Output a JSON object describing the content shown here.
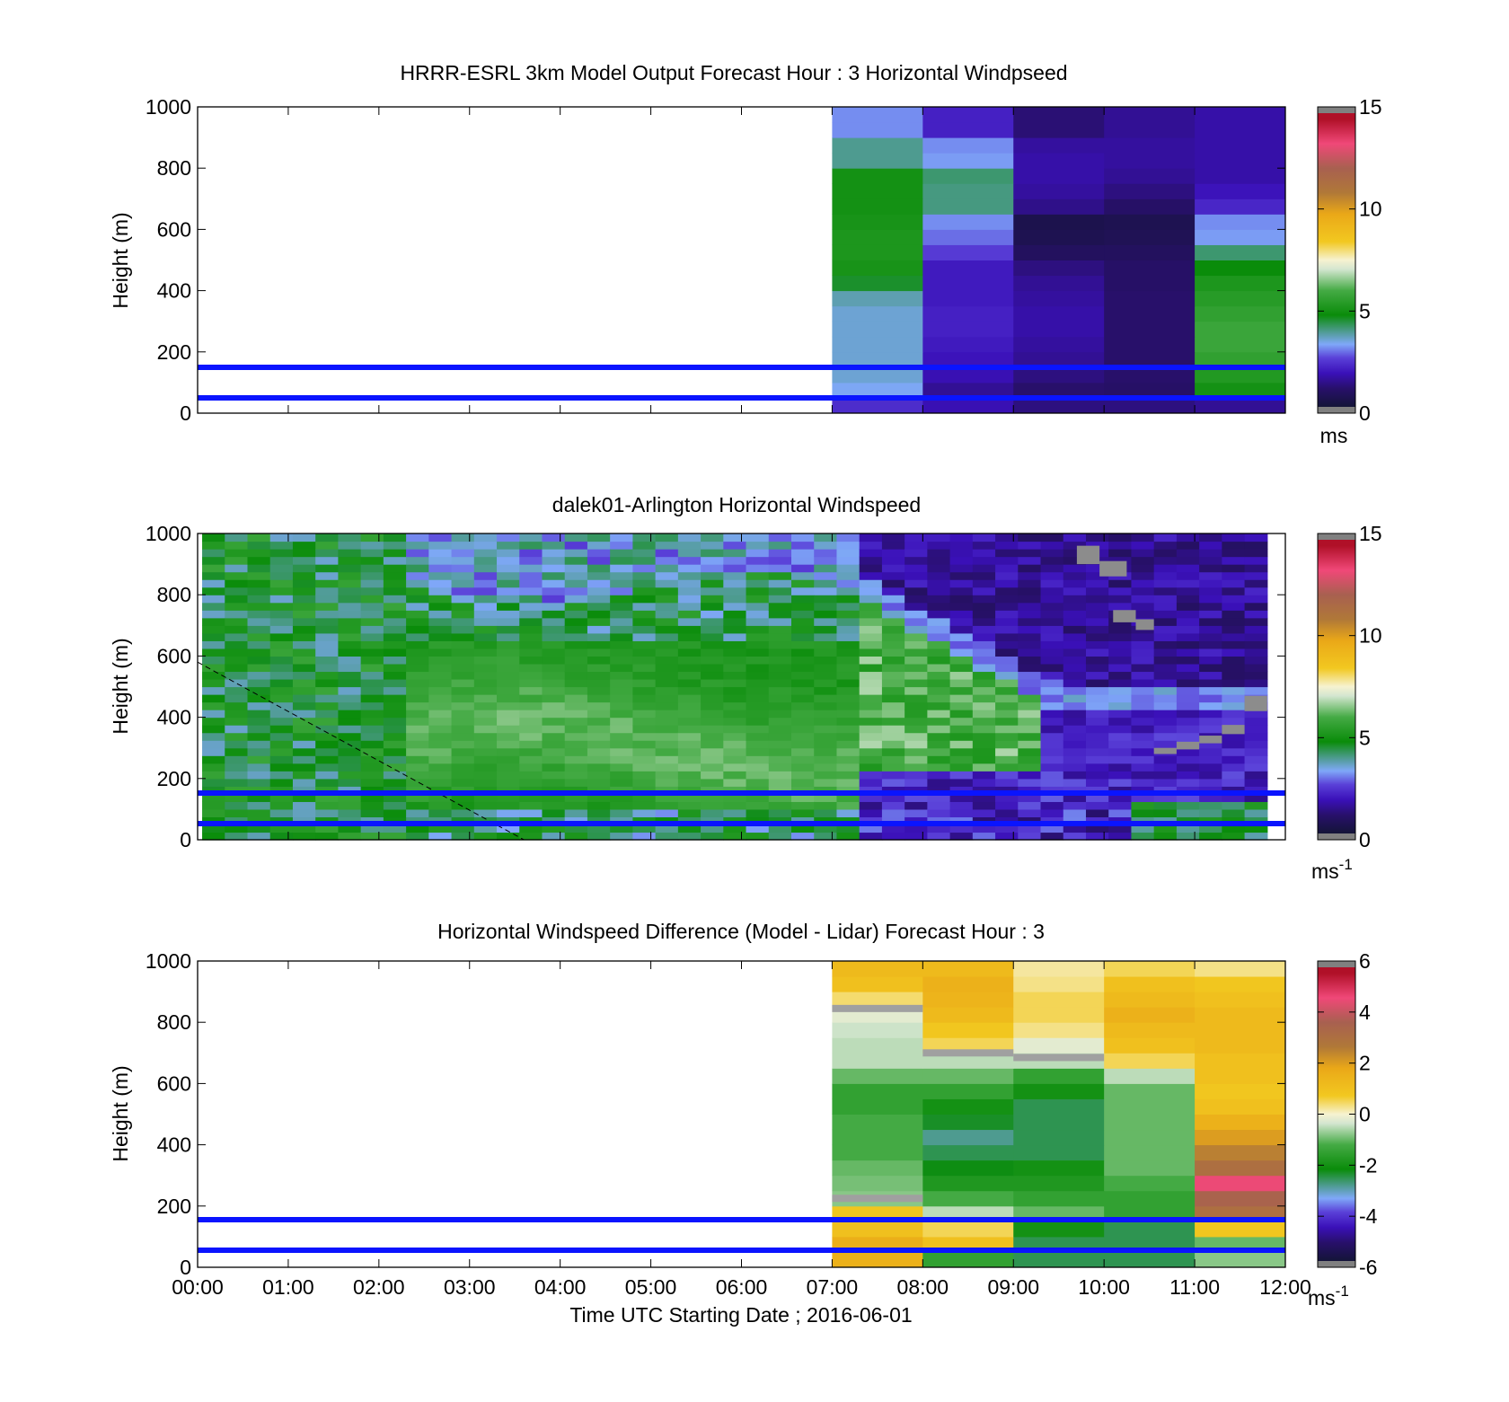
{
  "figure": {
    "xaxis": {
      "ticks": [
        "00:00",
        "01:00",
        "02:00",
        "03:00",
        "04:00",
        "05:00",
        "06:00",
        "07:00",
        "08:00",
        "09:00",
        "10:00",
        "11:00",
        "12:00"
      ],
      "label": "Time UTC  Starting Date ; 2016-06-01"
    }
  },
  "chart_data": [
    {
      "type": "heatmap",
      "title": "HRRR-ESRL 3km Model Output   Forecast Hour : 3 Horizontal Windpseed",
      "ylabel": "Height (m)",
      "ylim": [
        0,
        1000
      ],
      "yticks": [
        "0",
        "200",
        "400",
        "600",
        "800",
        "1000"
      ],
      "x_range_hours": [
        0,
        12
      ],
      "colorbar": {
        "ticks": [
          "0",
          "5",
          "10",
          "15"
        ],
        "range": [
          0,
          15
        ],
        "unit": "ms"
      },
      "reference_lines_m": [
        50,
        150
      ],
      "data_start_hour": 7,
      "heights_m": [
        25,
        75,
        125,
        175,
        225,
        275,
        325,
        375,
        425,
        475,
        525,
        575,
        625,
        675,
        725,
        775,
        825,
        875,
        925,
        975
      ],
      "values": [
        [
          2.4,
          1.9,
          1.4,
          1.4,
          1.6
        ],
        [
          3.4,
          1.6,
          1.2,
          1.1,
          5.0
        ],
        [
          3.6,
          1.9,
          1.4,
          1.2,
          5.3
        ],
        [
          3.6,
          2.0,
          1.6,
          1.2,
          5.6
        ],
        [
          3.6,
          2.1,
          1.7,
          1.2,
          5.8
        ],
        [
          3.6,
          2.2,
          1.8,
          1.2,
          5.8
        ],
        [
          3.6,
          2.2,
          1.8,
          1.2,
          5.6
        ],
        [
          3.8,
          2.1,
          1.7,
          1.2,
          5.4
        ],
        [
          4.6,
          2.1,
          1.6,
          1.1,
          5.2
        ],
        [
          5.1,
          2.1,
          1.4,
          1.1,
          4.8
        ],
        [
          5.2,
          2.6,
          0.9,
          0.9,
          4.2
        ],
        [
          5.2,
          3.0,
          0.6,
          0.7,
          3.3
        ],
        [
          5.1,
          3.2,
          0.5,
          0.6,
          3.2
        ],
        [
          5.0,
          4.1,
          1.5,
          1.1,
          2.3
        ],
        [
          5.0,
          4.1,
          1.7,
          1.4,
          2.0
        ],
        [
          5.0,
          4.2,
          1.8,
          1.6,
          1.8
        ],
        [
          4.0,
          3.3,
          1.8,
          1.7,
          1.8
        ],
        [
          4.0,
          3.2,
          1.7,
          1.7,
          1.8
        ],
        [
          3.2,
          2.2,
          1.3,
          1.6,
          1.8
        ],
        [
          3.2,
          2.2,
          1.3,
          1.6,
          1.8
        ]
      ]
    },
    {
      "type": "heatmap",
      "title": "dalek01-Arlington  Horizontal Windspeed",
      "ylabel": "Height (m)",
      "ylim": [
        0,
        1000
      ],
      "yticks": [
        "0",
        "200",
        "400",
        "600",
        "800",
        "1000"
      ],
      "x_range_hours": [
        0,
        12
      ],
      "colorbar": {
        "ticks": [
          "0",
          "5",
          "10",
          "15"
        ],
        "range": [
          0,
          15
        ],
        "unit": "ms",
        "unit_exponent": "-1"
      },
      "reference_lines_m": [
        50,
        150
      ],
      "data_end_hour": 11.8,
      "sample_note": "profile columns every 0.25 h; height bins every 25 m",
      "grey_blocks": [
        {
          "t": [
            9.7,
            9.95
          ],
          "h": [
            900,
            960
          ]
        },
        {
          "t": [
            9.95,
            10.25
          ],
          "h": [
            860,
            910
          ]
        },
        {
          "t": [
            10.1,
            10.35
          ],
          "h": [
            710,
            750
          ]
        },
        {
          "t": [
            10.35,
            10.55
          ],
          "h": [
            685,
            720
          ]
        },
        {
          "t": [
            10.55,
            10.8
          ],
          "h": [
            280,
            300
          ]
        },
        {
          "t": [
            10.8,
            11.05
          ],
          "h": [
            295,
            320
          ]
        },
        {
          "t": [
            11.05,
            11.3
          ],
          "h": [
            315,
            340
          ]
        },
        {
          "t": [
            11.3,
            11.55
          ],
          "h": [
            345,
            375
          ]
        },
        {
          "t": [
            11.55,
            11.8
          ],
          "h": [
            420,
            470
          ]
        }
      ],
      "dashed_line": {
        "from": {
          "t": 0.0,
          "h": 580
        },
        "to": {
          "t": 3.6,
          "h": 0
        }
      }
    },
    {
      "type": "heatmap",
      "title": "Horizontal Windspeed Difference (Model - Lidar) Forecast Hour : 3",
      "ylabel": "Height (m)",
      "ylim": [
        0,
        1000
      ],
      "yticks": [
        "0",
        "200",
        "400",
        "600",
        "800",
        "1000"
      ],
      "x_range_hours": [
        0,
        12
      ],
      "colorbar": {
        "ticks": [
          "-6",
          "-4",
          "-2",
          "0",
          "2",
          "4",
          "6"
        ],
        "range": [
          -6,
          6
        ],
        "unit": "ms",
        "unit_exponent": "-1"
      },
      "reference_lines_m": [
        50,
        150
      ],
      "data_start_hour": 7,
      "heights_m": [
        25,
        75,
        125,
        175,
        225,
        275,
        325,
        375,
        425,
        475,
        525,
        575,
        625,
        675,
        725,
        775,
        825,
        875,
        925,
        975
      ],
      "values": [
        [
          1.5,
          -1.5,
          -2.5,
          -2.5,
          -0.8
        ],
        [
          1.6,
          1.0,
          -2.5,
          -2.5,
          -1.0
        ],
        [
          1.0,
          0.5,
          -2.0,
          -2.5,
          0.8
        ],
        [
          0.8,
          -0.5,
          -1.0,
          -1.5,
          3.0
        ],
        [
          -0.8,
          -1.2,
          -1.5,
          -1.5,
          3.5
        ],
        [
          -0.9,
          -1.8,
          -1.8,
          -1.2,
          4.5
        ],
        [
          -1.0,
          -2.2,
          -2.0,
          -1.0,
          3.0
        ],
        [
          -1.2,
          -2.5,
          -2.5,
          -1.0,
          2.5
        ],
        [
          -1.2,
          -2.8,
          -2.5,
          -1.0,
          2.0
        ],
        [
          -1.2,
          -2.3,
          -2.5,
          -1.0,
          1.5
        ],
        [
          -1.5,
          -2.0,
          -2.5,
          -1.0,
          1.0
        ],
        [
          -1.5,
          -1.5,
          -2.0,
          -1.0,
          0.8
        ],
        [
          -1.0,
          -1.0,
          -1.5,
          -0.5,
          1.0
        ],
        [
          -0.5,
          -0.5,
          -0.5,
          0.5,
          1.0
        ],
        [
          -0.5,
          0.5,
          -0.2,
          1.0,
          1.2
        ],
        [
          -0.4,
          0.8,
          0.3,
          1.2,
          1.2
        ],
        [
          -0.2,
          1.2,
          0.5,
          1.5,
          1.2
        ],
        [
          0.4,
          1.4,
          0.5,
          1.2,
          1.0
        ],
        [
          1.0,
          1.5,
          0.3,
          1.0,
          0.8
        ],
        [
          1.2,
          1.2,
          0.2,
          0.5,
          0.3
        ]
      ],
      "grey_lines": [
        {
          "col": 0,
          "h": 845
        },
        {
          "col": 0,
          "h": 225
        },
        {
          "col": 1,
          "h": 700
        },
        {
          "col": 2,
          "h": 685
        }
      ]
    }
  ]
}
